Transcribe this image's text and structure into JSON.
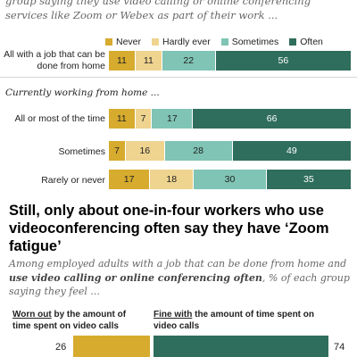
{
  "top_subtitle": "group saying they use video calling or online conferencing services like Zoom or Webex as part of their work ...",
  "legend": {
    "never": "Never",
    "hardly": "Hardly ever",
    "sometimes": "Sometimes",
    "often": "Often"
  },
  "colors": {
    "never": "#d6ab2e",
    "hardly": "#efd490",
    "sometimes": "#7fc4b4",
    "often": "#2f6e5c"
  },
  "group_label": "Currently working from home ...",
  "headline": "Still, only about one-in-four workers who use videoconferencing often say they have ‘Zoom fatigue’",
  "sub2": {
    "before": "Among employed adults with a job that can be done from home and ",
    "bold": "use video calling or online conferencing often",
    "after": ", % of each group saying they feel ..."
  },
  "col_left": {
    "underlined": "Worn out",
    "rest": " by the amount of time spent on video calls"
  },
  "col_right": {
    "underlined": "Fine with",
    "rest": " the amount of time spent on video calls"
  },
  "chart_data": [
    {
      "type": "bar",
      "stacked": true,
      "orientation": "horizontal",
      "series_names": [
        "Never",
        "Hardly ever",
        "Sometimes",
        "Often"
      ],
      "categories": [
        "All with a job that can be done from home",
        "All or most of the time",
        "Sometimes",
        "Rarely or never"
      ],
      "series": [
        {
          "name": "Never",
          "values": [
            11,
            11,
            7,
            17
          ]
        },
        {
          "name": "Hardly ever",
          "values": [
            11,
            7,
            16,
            18
          ]
        },
        {
          "name": "Sometimes",
          "values": [
            22,
            17,
            28,
            30
          ]
        },
        {
          "name": "Often",
          "values": [
            56,
            66,
            49,
            35
          ]
        }
      ],
      "category_labels": [
        "All with a job that can be done from home",
        "All or most of the time",
        "Sometimes",
        "Rarely or never"
      ],
      "legend_position": "top"
    },
    {
      "type": "bar",
      "orientation": "horizontal",
      "categories": [
        "Worn out",
        "Fine with"
      ],
      "values": [
        26,
        74
      ]
    }
  ]
}
